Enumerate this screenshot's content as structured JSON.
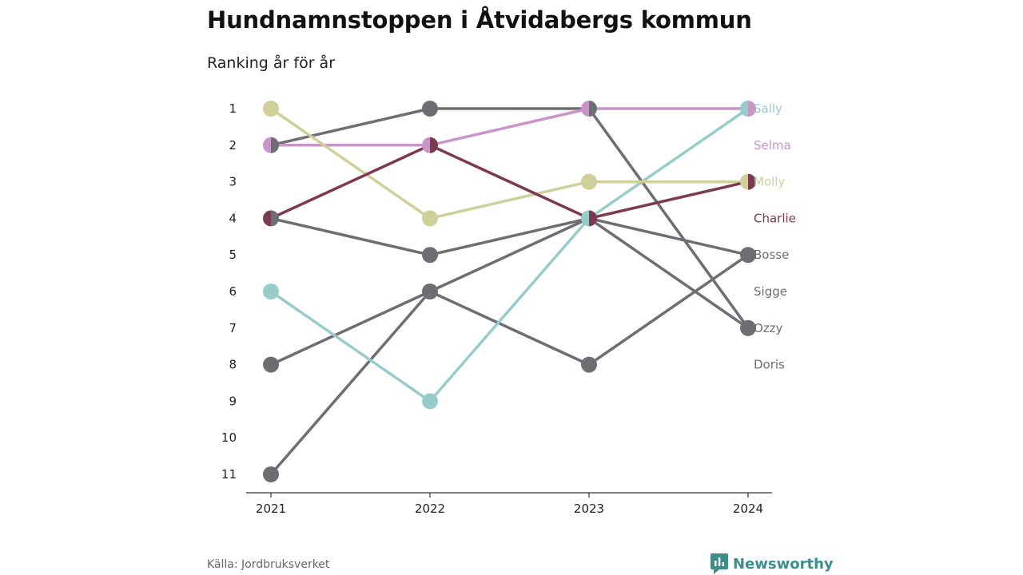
{
  "title": "Hundnamnstoppen i Åtvidabergs kommun",
  "subtitle": "Ranking år för år",
  "source": "Källa: Jordbruksverket",
  "brand": {
    "name": "Newsworthy",
    "icon": "newsworthy-logo-icon",
    "color": "#3a8f8c"
  },
  "chart_data": {
    "type": "line",
    "subtype": "bump",
    "title": "Hundnamnstoppen i Åtvidabergs kommun",
    "subtitle": "Ranking år för år",
    "x": [
      "2021",
      "2022",
      "2023",
      "2024"
    ],
    "y_ticks": [
      1,
      2,
      3,
      4,
      5,
      6,
      7,
      8,
      9,
      10,
      11
    ],
    "ylim": [
      1,
      11
    ],
    "y_inverted": true,
    "grid": false,
    "legend": "labels at right end of lines",
    "series": [
      {
        "name": "Sally",
        "color": "#97cccb",
        "values": [
          6,
          9,
          4,
          1
        ]
      },
      {
        "name": "Selma",
        "color": "#c994c7",
        "values": [
          2,
          2,
          1,
          1
        ]
      },
      {
        "name": "Molly",
        "color": "#cfcf9a",
        "values": [
          1,
          4,
          3,
          3
        ]
      },
      {
        "name": "Charlie",
        "color": "#7b3a52",
        "values": [
          4,
          2,
          4,
          3
        ]
      },
      {
        "name": "Bosse",
        "color": "#6e6d73",
        "values": [
          4,
          5,
          4,
          5
        ]
      },
      {
        "name": "Sigge",
        "color": "#6e6d73",
        "values": [
          8,
          6,
          8,
          5
        ]
      },
      {
        "name": "Ozzy",
        "color": "#6e6d73",
        "values": [
          2,
          1,
          1,
          7
        ]
      },
      {
        "name": "Doris",
        "color": "#6e6d73",
        "values": [
          11,
          6,
          4,
          7
        ]
      }
    ]
  }
}
